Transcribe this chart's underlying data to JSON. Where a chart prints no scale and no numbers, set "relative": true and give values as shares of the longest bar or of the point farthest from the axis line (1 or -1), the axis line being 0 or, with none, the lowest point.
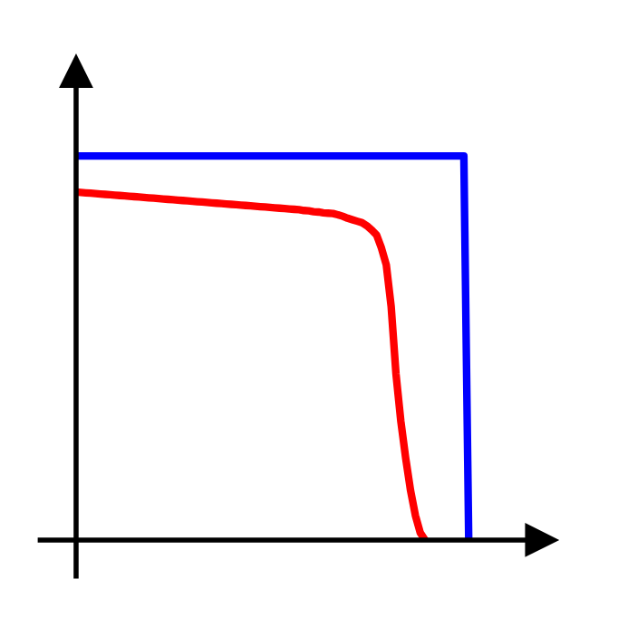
{
  "chart_data": {
    "type": "line",
    "relative": true,
    "line_style": "solid",
    "marker": "none",
    "categories": [
      null,
      null,
      null,
      null,
      null,
      null,
      null,
      null,
      null,
      null,
      null,
      null,
      null,
      null,
      null,
      null,
      null,
      null,
      null,
      null,
      null,
      null,
      null,
      null,
      null,
      null,
      null,
      null,
      null,
      null,
      null,
      null,
      null,
      null,
      null,
      null,
      null,
      null,
      null,
      null,
      null,
      null,
      null,
      null,
      null,
      null,
      null,
      null,
      null,
      null,
      null,
      null,
      null,
      null,
      null,
      null,
      null,
      null,
      null,
      null,
      null,
      null,
      null,
      null,
      null,
      null,
      null,
      null,
      null,
      null,
      null,
      null,
      null,
      null,
      null,
      null,
      null,
      null,
      null,
      null,
      null,
      null
    ],
    "series": [
      {
        "color": "#0000ff",
        "values": [
          1,
          1,
          1,
          1,
          1,
          1,
          1,
          1,
          1,
          1,
          1,
          1,
          1,
          1,
          1,
          1,
          1,
          1,
          1,
          1,
          1,
          1,
          1,
          1,
          1,
          1,
          1,
          1,
          1,
          1,
          1,
          1,
          1,
          1,
          1,
          1,
          1,
          1,
          1,
          1,
          1,
          1,
          1,
          1,
          1,
          1,
          1,
          1,
          1,
          1,
          1,
          1,
          1,
          1,
          1,
          1,
          1,
          1,
          1,
          1,
          1,
          1,
          1,
          1,
          1,
          1,
          1,
          1,
          1,
          1,
          1,
          1,
          1,
          1,
          1,
          1,
          1,
          1,
          1,
          1,
          1,
          0
        ]
      },
      {
        "color": "#ff0000",
        "values": [
          0.906,
          0.905,
          0.904,
          0.903,
          0.902,
          0.901,
          0.9,
          0.899,
          0.898,
          0.897,
          0.896,
          0.895,
          0.894,
          0.893,
          0.892,
          0.891,
          0.89,
          0.889,
          0.888,
          0.887,
          0.886,
          0.885,
          0.884,
          0.883,
          0.882,
          0.881,
          0.88,
          0.879,
          0.878,
          0.877,
          0.876,
          0.875,
          0.874,
          0.873,
          0.872,
          0.871,
          0.87,
          0.869,
          0.868,
          0.867,
          0.866,
          0.865,
          0.864,
          0.863,
          0.862,
          0.861,
          0.86,
          0.858,
          0.857,
          0.855,
          0.854,
          0.852,
          0.851,
          0.85,
          0.847,
          0.843,
          0.838,
          0.834,
          0.83,
          0.826,
          0.818,
          0.807,
          0.794,
          0.76,
          0.716,
          0.608,
          0.432,
          0.309,
          0.213,
          0.129,
          0.064,
          0.019,
          0,
          null,
          null,
          null,
          null,
          null,
          null,
          null,
          null,
          null
        ]
      }
    ]
  }
}
